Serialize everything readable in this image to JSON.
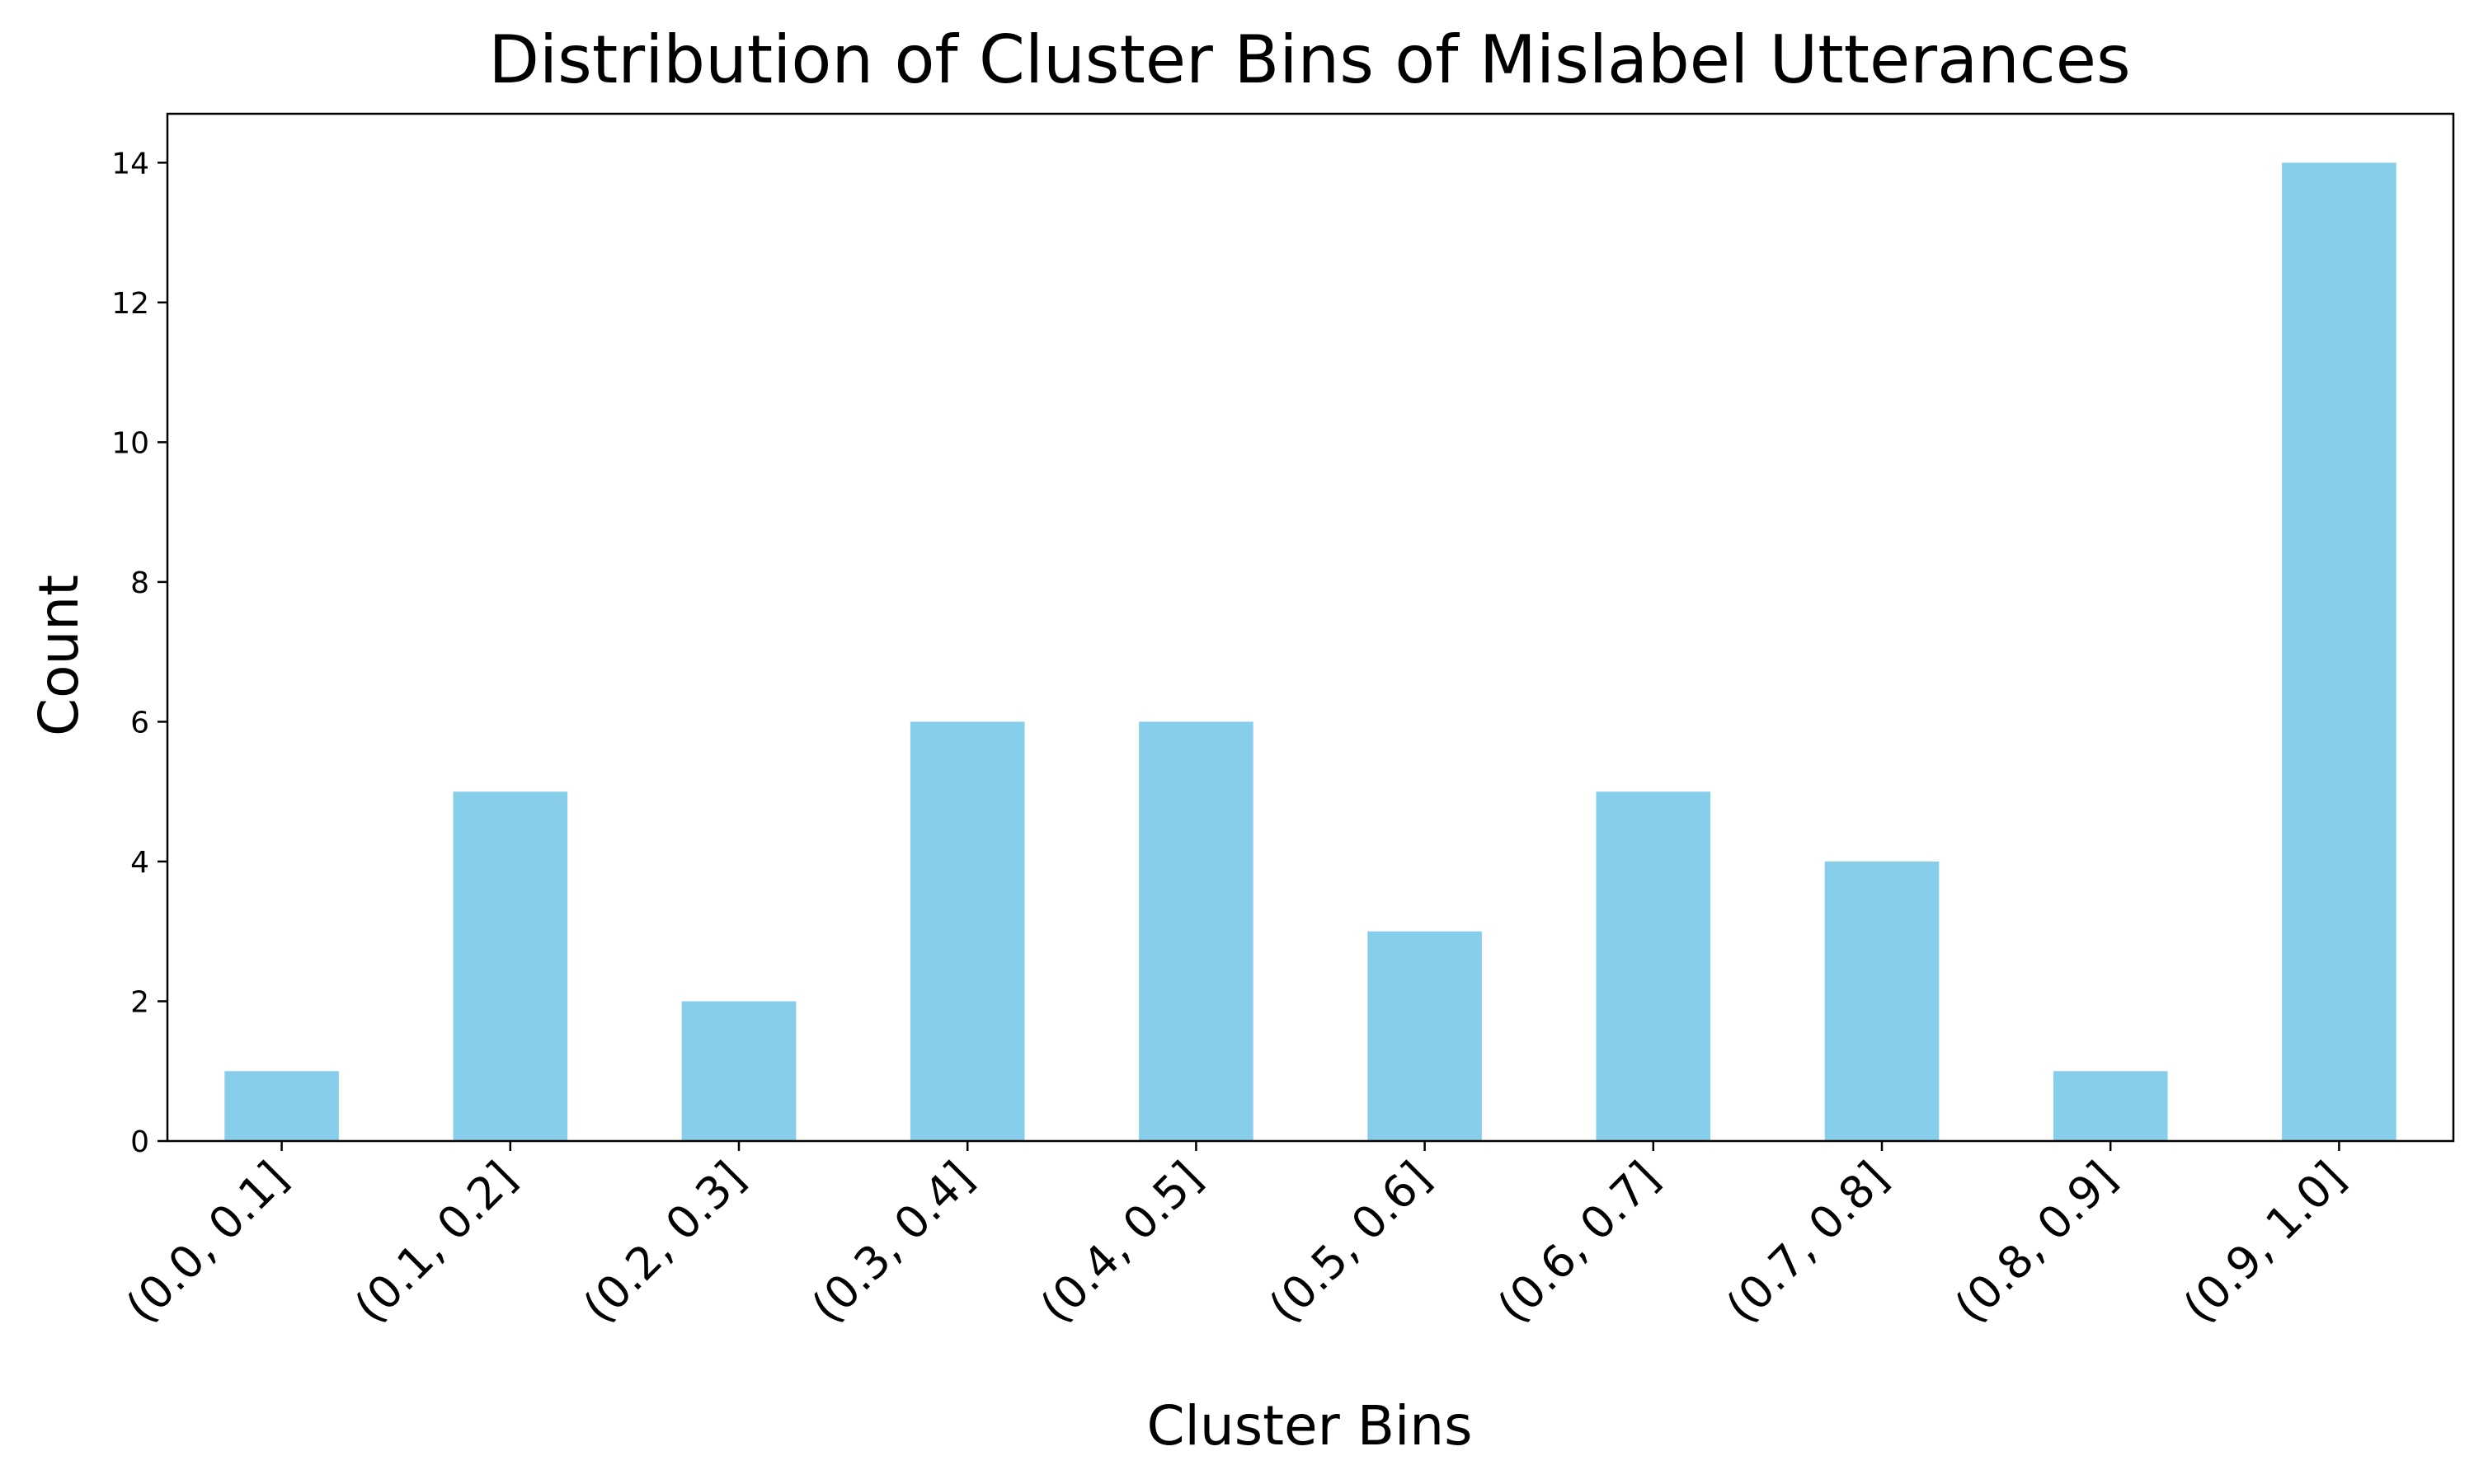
{
  "chart_data": {
    "type": "bar",
    "title": "Distribution of Cluster Bins of Mislabel Utterances",
    "xlabel": "Cluster Bins",
    "ylabel": "Count",
    "categories": [
      "(0.0, 0.1]",
      "(0.1, 0.2]",
      "(0.2, 0.3]",
      "(0.3, 0.4]",
      "(0.4, 0.5]",
      "(0.5, 0.6]",
      "(0.6, 0.7]",
      "(0.7, 0.8]",
      "(0.8, 0.9]",
      "(0.9, 1.0]"
    ],
    "values": [
      1,
      5,
      2,
      6,
      6,
      3,
      5,
      4,
      1,
      14
    ],
    "ylim": [
      0,
      14.7
    ],
    "yticks": [
      0,
      2,
      4,
      6,
      8,
      10,
      12,
      14
    ],
    "bar_color": "#87ceeb",
    "grid": false,
    "legend": false
  }
}
